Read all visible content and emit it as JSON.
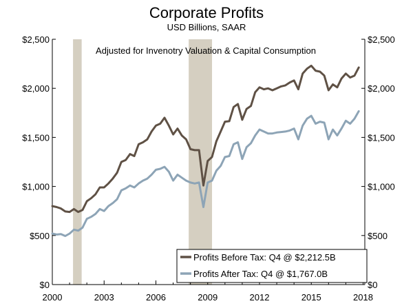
{
  "chart_data": {
    "type": "line",
    "title": "Corporate Profits",
    "subtitle": "USD Billions, SAAR",
    "annotation": "Adjusted for Invenotry Valuation & Capital Consumption",
    "xlim": [
      2000.0,
      2018.1
    ],
    "ylim": [
      0,
      2500
    ],
    "x_ticks": [
      2000,
      2003,
      2006,
      2009,
      2012,
      2015,
      2018
    ],
    "x_tick_labels": [
      "2000",
      "2003",
      "2006",
      "2009",
      "2012",
      "2015",
      "2018"
    ],
    "y_ticks": [
      0,
      500,
      1000,
      1500,
      2000,
      2500
    ],
    "y_tick_labels": [
      "$0",
      "$500",
      "$1,000",
      "$1,500",
      "$2,000",
      "$2,500"
    ],
    "recessions": [
      [
        2001.2,
        2001.7
      ],
      [
        2007.9,
        2009.25
      ]
    ],
    "x": [
      2000.0,
      2000.25,
      2000.5,
      2000.75,
      2001.0,
      2001.25,
      2001.5,
      2001.75,
      2002.0,
      2002.25,
      2002.5,
      2002.75,
      2003.0,
      2003.25,
      2003.5,
      2003.75,
      2004.0,
      2004.25,
      2004.5,
      2004.75,
      2005.0,
      2005.25,
      2005.5,
      2005.75,
      2006.0,
      2006.25,
      2006.5,
      2006.75,
      2007.0,
      2007.25,
      2007.5,
      2007.75,
      2008.0,
      2008.25,
      2008.5,
      2008.75,
      2009.0,
      2009.25,
      2009.5,
      2009.75,
      2010.0,
      2010.25,
      2010.5,
      2010.75,
      2011.0,
      2011.25,
      2011.5,
      2011.75,
      2012.0,
      2012.25,
      2012.5,
      2012.75,
      2013.0,
      2013.25,
      2013.5,
      2013.75,
      2014.0,
      2014.25,
      2014.5,
      2014.75,
      2015.0,
      2015.25,
      2015.5,
      2015.75,
      2016.0,
      2016.25,
      2016.5,
      2016.75,
      2017.0,
      2017.25,
      2017.5,
      2017.75
    ],
    "series": [
      {
        "name": "Profits Before Tax: Q4 @ $2,212.5B",
        "color": "#5f5145",
        "values": [
          800,
          790,
          775,
          745,
          740,
          770,
          740,
          760,
          850,
          880,
          920,
          990,
          990,
          1030,
          1080,
          1140,
          1250,
          1270,
          1330,
          1310,
          1430,
          1450,
          1480,
          1560,
          1620,
          1640,
          1700,
          1620,
          1530,
          1590,
          1520,
          1480,
          1380,
          1370,
          1370,
          1010,
          1260,
          1300,
          1460,
          1560,
          1660,
          1665,
          1810,
          1840,
          1680,
          1790,
          1820,
          1960,
          2010,
          1990,
          2000,
          1980,
          2000,
          2020,
          2030,
          2060,
          2080,
          1990,
          2150,
          2200,
          2230,
          2180,
          2170,
          2130,
          1980,
          2040,
          2010,
          2100,
          2150,
          2110,
          2130,
          2212.5
        ]
      },
      {
        "name": "Profits After Tax: Q4 @ $1,767.0B",
        "color": "#8da4b6",
        "values": [
          520,
          510,
          515,
          495,
          520,
          560,
          550,
          580,
          670,
          690,
          720,
          770,
          750,
          800,
          830,
          870,
          960,
          980,
          1010,
          990,
          1030,
          1060,
          1080,
          1120,
          1170,
          1180,
          1200,
          1150,
          1060,
          1120,
          1090,
          1060,
          1040,
          1030,
          1040,
          790,
          1040,
          1060,
          1160,
          1210,
          1300,
          1310,
          1430,
          1450,
          1280,
          1400,
          1440,
          1520,
          1580,
          1560,
          1540,
          1540,
          1550,
          1555,
          1560,
          1570,
          1590,
          1480,
          1620,
          1690,
          1720,
          1640,
          1660,
          1650,
          1480,
          1580,
          1520,
          1590,
          1670,
          1640,
          1690,
          1767.0
        ]
      }
    ],
    "legend_position": "bottom-right",
    "grid": false
  },
  "colors": {
    "recession_band": "#d5cfc1",
    "axis": "#000000"
  }
}
